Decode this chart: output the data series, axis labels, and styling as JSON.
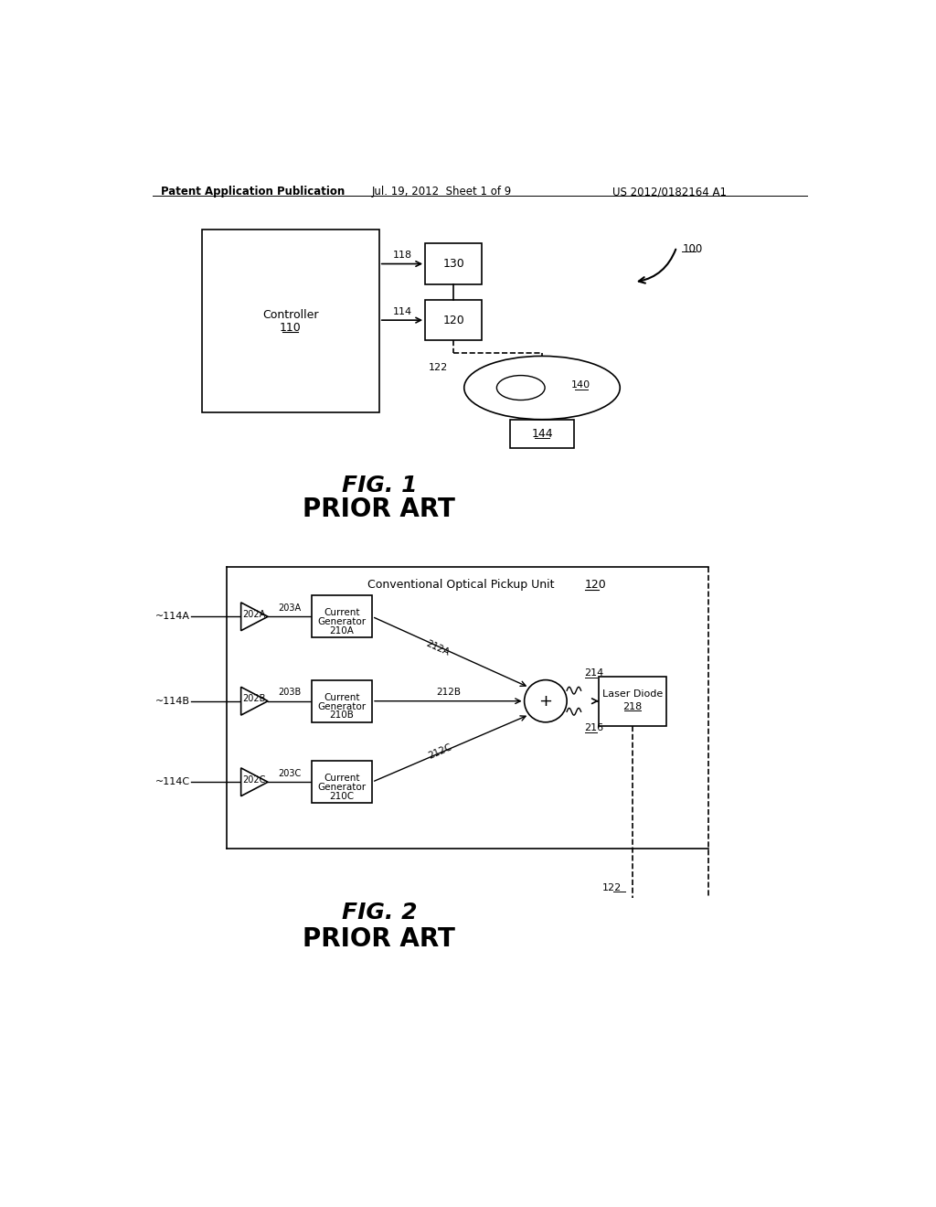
{
  "bg_color": "#ffffff",
  "line_color": "#000000",
  "header_text": "Patent Application Publication",
  "header_date": "Jul. 19, 2012  Sheet 1 of 9",
  "header_patent": "US 2012/0182164 A1",
  "fig1_label": "FIG. 1",
  "fig1_sub": "PRIOR ART",
  "fig2_label": "FIG. 2",
  "fig2_sub": "PRIOR ART",
  "ref_100": "100",
  "ref_110": "110",
  "ref_110_label": "Controller",
  "ref_118": "118",
  "ref_114": "114",
  "ref_130": "130",
  "ref_120": "120",
  "ref_122": "122",
  "ref_140": "140",
  "ref_144": "144",
  "fig2_title": "Conventional Optical Pickup Unit",
  "fig2_title_ref": "120",
  "ref_218_text": "Laser Diode",
  "ref_218_num": "218",
  "ref_122b": "122"
}
